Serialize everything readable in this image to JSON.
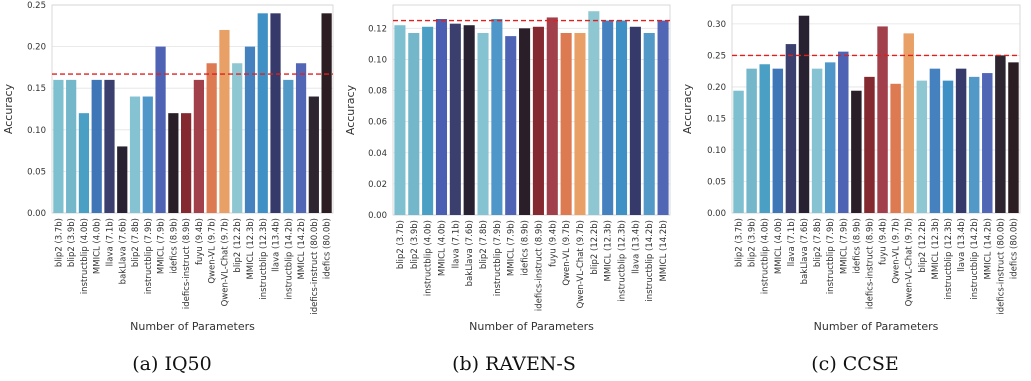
{
  "charts": [
    {
      "caption": "(a) IQ50",
      "chart_data": {
        "type": "bar",
        "title": "",
        "xlabel": "Number of Parameters",
        "ylabel": "Accuracy",
        "ylim": [
          0,
          0.25
        ],
        "yticks": [
          "0.00",
          "0.05",
          "0.10",
          "0.15",
          "0.20",
          "0.25"
        ],
        "categories": [
          "blip2 (3.7b)",
          "blip2 (3.9b)",
          "instructblip (4.0b)",
          "MMICL (4.0b)",
          "llava (7.1b)",
          "bakLlava (7.6b)",
          "blip2 (7.8b)",
          "instructblip (7.9b)",
          "MMICL (7.9b)",
          "idefics (8.9b)",
          "idefics-instruct (8.9b)",
          "fuyu (9.4b)",
          "Qwen-VL (9.7b)",
          "Qwen-VL-Chat (9.7b)",
          "blip2 (12.2b)",
          "MMICL (12.3b)",
          "instructblip (12.3b)",
          "llava (13.4b)",
          "instructblip (14.2b)",
          "MMICL (14.2b)",
          "idefics-instruct (80.0b)",
          "idefics (80.0b)"
        ],
        "values": [
          0.16,
          0.16,
          0.12,
          0.16,
          0.16,
          0.08,
          0.14,
          0.14,
          0.2,
          0.12,
          0.12,
          0.16,
          0.18,
          0.22,
          0.18,
          0.2,
          0.24,
          0.24,
          0.16,
          0.18,
          0.14,
          0.24
        ],
        "colors": [
          "#7ec0cf",
          "#74b7cb",
          "#4aa0c4",
          "#3f76b8",
          "#3b3f6d",
          "#272131",
          "#85c3d2",
          "#4f97c8",
          "#4f63b4",
          "#2a1e28",
          "#84292f",
          "#a13f4b",
          "#dd7a52",
          "#e8a066",
          "#8ec7d1",
          "#4580bf",
          "#3f90c5",
          "#353a6a",
          "#5299c8",
          "#5167b6",
          "#2d2530",
          "#2b1d22"
        ],
        "baseline": 0.167,
        "grid": true
      }
    },
    {
      "caption": "(b) RAVEN-S",
      "chart_data": {
        "type": "bar",
        "title": "",
        "xlabel": "Number of Parameters",
        "ylabel": "Accuracy",
        "ylim": [
          0,
          0.135
        ],
        "yticks": [
          "0.00",
          "0.02",
          "0.04",
          "0.06",
          "0.08",
          "0.10",
          "0.12"
        ],
        "categories": [
          "blip2 (3.7b)",
          "blip2 (3.9b)",
          "instructblip (4.0b)",
          "MMICL (4.0b)",
          "llava (7.1b)",
          "bakLlava (7.6b)",
          "blip2 (7.8b)",
          "instructblip (7.9b)",
          "MMICL (7.9b)",
          "idefics (8.9b)",
          "idefics-instruct (8.9b)",
          "fuyu (9.4b)",
          "Qwen-VL (9.7b)",
          "Qwen-VL-Chat (9.7b)",
          "blip2 (12.2b)",
          "MMICL (12.3b)",
          "instructblip (12.3b)",
          "llava (13.4b)",
          "instructblip (14.2b)",
          "MMICL (14.2b)"
        ],
        "values": [
          0.122,
          0.117,
          0.121,
          0.126,
          0.123,
          0.122,
          0.117,
          0.126,
          0.115,
          0.12,
          0.121,
          0.127,
          0.117,
          0.117,
          0.131,
          0.125,
          0.125,
          0.121,
          0.117,
          0.125
        ],
        "colors": [
          "#7ec0cf",
          "#74b7cb",
          "#4aa0c4",
          "#4a5fb2",
          "#3b3f6d",
          "#272131",
          "#85c3d2",
          "#4f97c8",
          "#4f63b4",
          "#2a1e28",
          "#84292f",
          "#a13f4b",
          "#dd7a52",
          "#e8a066",
          "#8ec7d1",
          "#4580bf",
          "#3f90c5",
          "#353a6a",
          "#5299c8",
          "#5167b6"
        ],
        "baseline": 0.125,
        "grid": true
      }
    },
    {
      "caption": "(c) CCSE",
      "chart_data": {
        "type": "bar",
        "title": "",
        "xlabel": "Number of Parameters",
        "ylabel": "Accuracy",
        "ylim": [
          0,
          0.33
        ],
        "yticks": [
          "0.00",
          "0.05",
          "0.10",
          "0.15",
          "0.20",
          "0.25",
          "0.30"
        ],
        "categories": [
          "blip2 (3.7b)",
          "blip2 (3.9b)",
          "instructblip (4.0b)",
          "MMICL (4.0b)",
          "llava (7.1b)",
          "bakLlava (7.6b)",
          "blip2 (7.8b)",
          "instructblip (7.9b)",
          "MMICL (7.9b)",
          "idefics (8.9b)",
          "idefics-instruct (8.9b)",
          "fuyu (9.4b)",
          "Qwen-VL (9.7b)",
          "Qwen-VL-Chat (9.7b)",
          "blip2 (12.2b)",
          "MMICL (12.3b)",
          "instructblip (12.3b)",
          "llava (13.4b)",
          "instructblip (14.2b)",
          "MMICL (14.2b)",
          "idefics-instruct (80.0b)",
          "idefics (80.0b)"
        ],
        "values": [
          0.194,
          0.229,
          0.236,
          0.229,
          0.268,
          0.313,
          0.229,
          0.239,
          0.256,
          0.194,
          0.216,
          0.296,
          0.205,
          0.285,
          0.21,
          0.229,
          0.21,
          0.229,
          0.216,
          0.222,
          0.25,
          0.239
        ],
        "colors": [
          "#7ec0cf",
          "#74b7cb",
          "#4aa0c4",
          "#3f76b8",
          "#3b3f6d",
          "#272131",
          "#85c3d2",
          "#4f97c8",
          "#4f63b4",
          "#2a1e28",
          "#84292f",
          "#a13f4b",
          "#dd7a52",
          "#e8a066",
          "#8ec7d1",
          "#4580bf",
          "#3f90c5",
          "#353a6a",
          "#5299c8",
          "#5167b6",
          "#2d2530",
          "#2b1d22"
        ],
        "baseline": 0.25,
        "grid": true
      }
    }
  ],
  "style": {
    "grid_color": "#e3e3e3",
    "baseline_color": "#e0201f",
    "axis_color": "#d0d0d0"
  }
}
